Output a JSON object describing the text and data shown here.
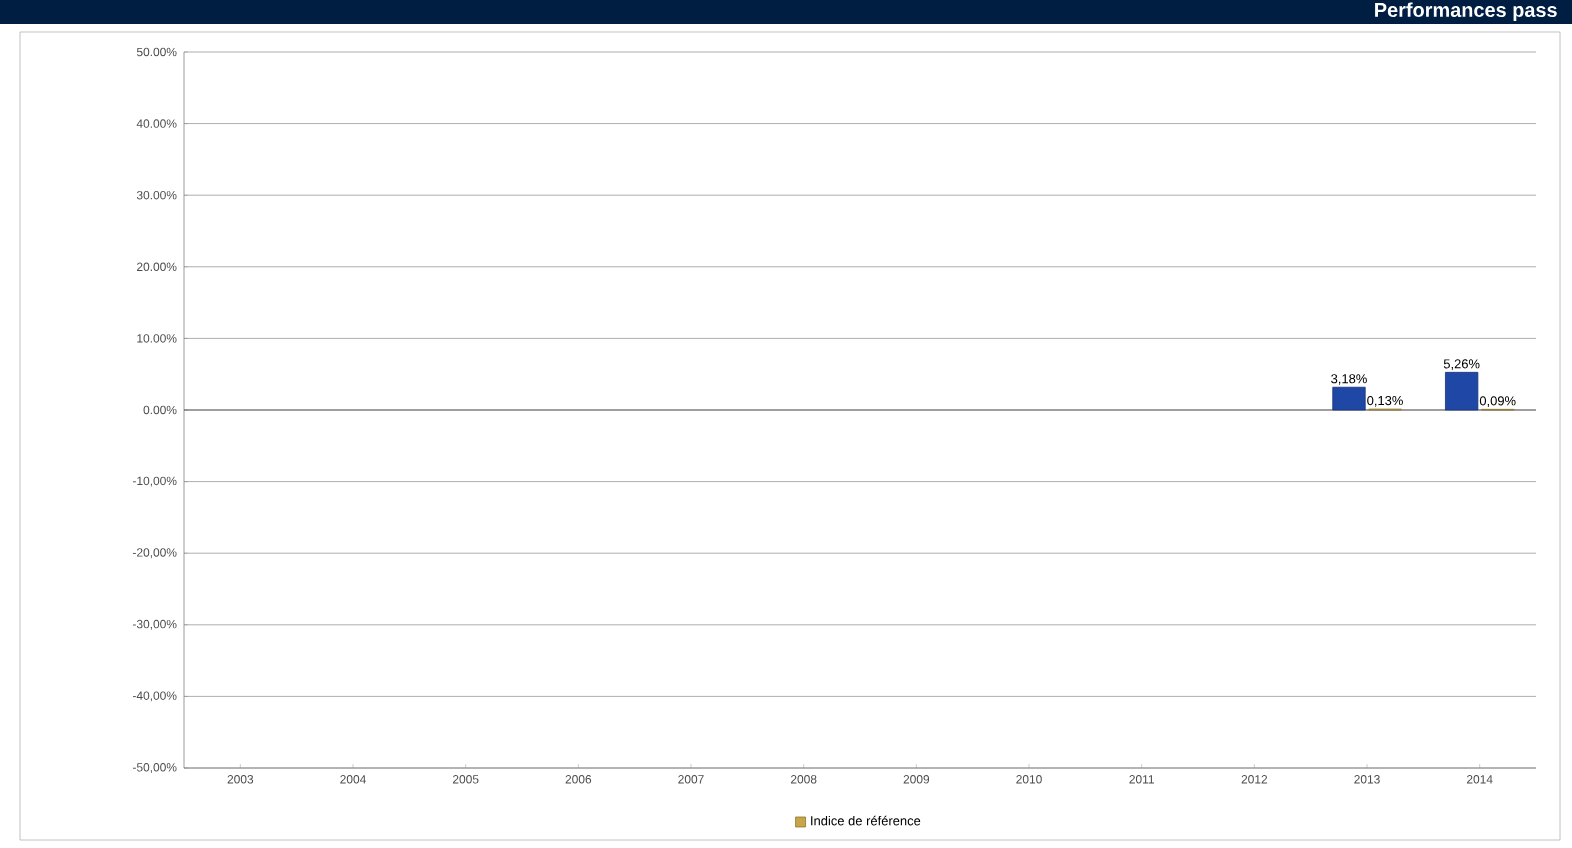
{
  "chart_data": {
    "type": "bar",
    "title": "Performances pass",
    "categories": [
      "2003",
      "2004",
      "2005",
      "2006",
      "2007",
      "2008",
      "2009",
      "2010",
      "2011",
      "2012",
      "2013",
      "2014"
    ],
    "series": [
      {
        "color": "#1f48a6",
        "values": [
          null,
          null,
          null,
          null,
          null,
          null,
          null,
          null,
          null,
          null,
          3.18,
          5.26
        ],
        "value_labels": [
          null,
          null,
          null,
          null,
          null,
          null,
          null,
          null,
          null,
          null,
          "3,18%",
          "5,26%"
        ]
      },
      {
        "name": "Indice de référence",
        "color": "#c8a646",
        "values": [
          null,
          null,
          null,
          null,
          null,
          null,
          null,
          null,
          null,
          null,
          0.13,
          0.09
        ],
        "value_labels": [
          null,
          null,
          null,
          null,
          null,
          null,
          null,
          null,
          null,
          null,
          "0,13%",
          "0,09%"
        ]
      }
    ],
    "ylim": [
      -50,
      50
    ],
    "yticks": [
      {
        "value": 50,
        "label": "50.00%"
      },
      {
        "value": 40,
        "label": "40.00%"
      },
      {
        "value": 30,
        "label": "30.00%"
      },
      {
        "value": 20,
        "label": "20.00%"
      },
      {
        "value": 10,
        "label": "10.00%"
      },
      {
        "value": 0,
        "label": "0.00%"
      },
      {
        "value": -10,
        "label": "-10,00%"
      },
      {
        "value": -20,
        "label": "-20,00%"
      },
      {
        "value": -30,
        "label": "-30,00%"
      },
      {
        "value": -40,
        "label": "-40,00%"
      },
      {
        "value": -50,
        "label": "-50,00%"
      }
    ],
    "grid": "y",
    "legend": "bottom"
  }
}
